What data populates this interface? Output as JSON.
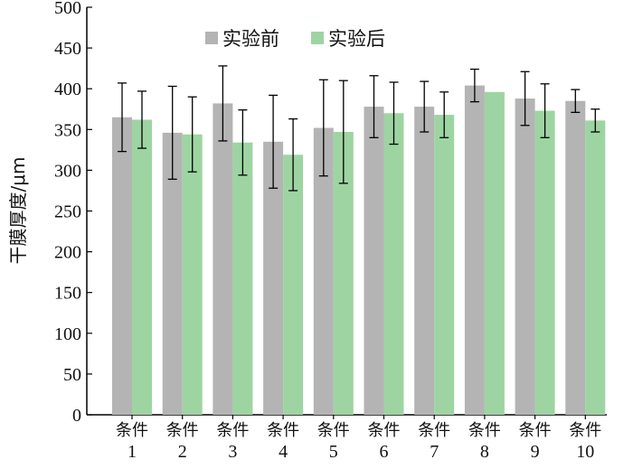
{
  "chart_data": {
    "type": "bar",
    "ylabel": "干膜厚度/μm",
    "ylim": [
      0,
      500
    ],
    "yticks": [
      0,
      50,
      100,
      150,
      200,
      250,
      300,
      350,
      400,
      450,
      500
    ],
    "categories": [
      {
        "label": "条件",
        "num": "1"
      },
      {
        "label": "条件",
        "num": "2"
      },
      {
        "label": "条件",
        "num": "3"
      },
      {
        "label": "条件",
        "num": "4"
      },
      {
        "label": "条件",
        "num": "5"
      },
      {
        "label": "条件",
        "num": "6"
      },
      {
        "label": "条件",
        "num": "7"
      },
      {
        "label": "条件",
        "num": "8"
      },
      {
        "label": "条件",
        "num": "9"
      },
      {
        "label": "条件",
        "num": "10"
      }
    ],
    "series": [
      {
        "name": "实验前",
        "color": "#b4b4b4",
        "values": [
          365,
          346,
          382,
          335,
          352,
          378,
          378,
          404,
          388,
          385
        ],
        "errors": [
          42,
          57,
          46,
          57,
          59,
          38,
          31,
          20,
          33,
          14
        ]
      },
      {
        "name": "实验后",
        "color": "#9ed4a2",
        "values": [
          362,
          344,
          334,
          319,
          347,
          370,
          368,
          396,
          373,
          361
        ],
        "errors": [
          35,
          46,
          40,
          44,
          63,
          38,
          28,
          0,
          33,
          14
        ]
      }
    ],
    "legend_position": "top-center"
  }
}
